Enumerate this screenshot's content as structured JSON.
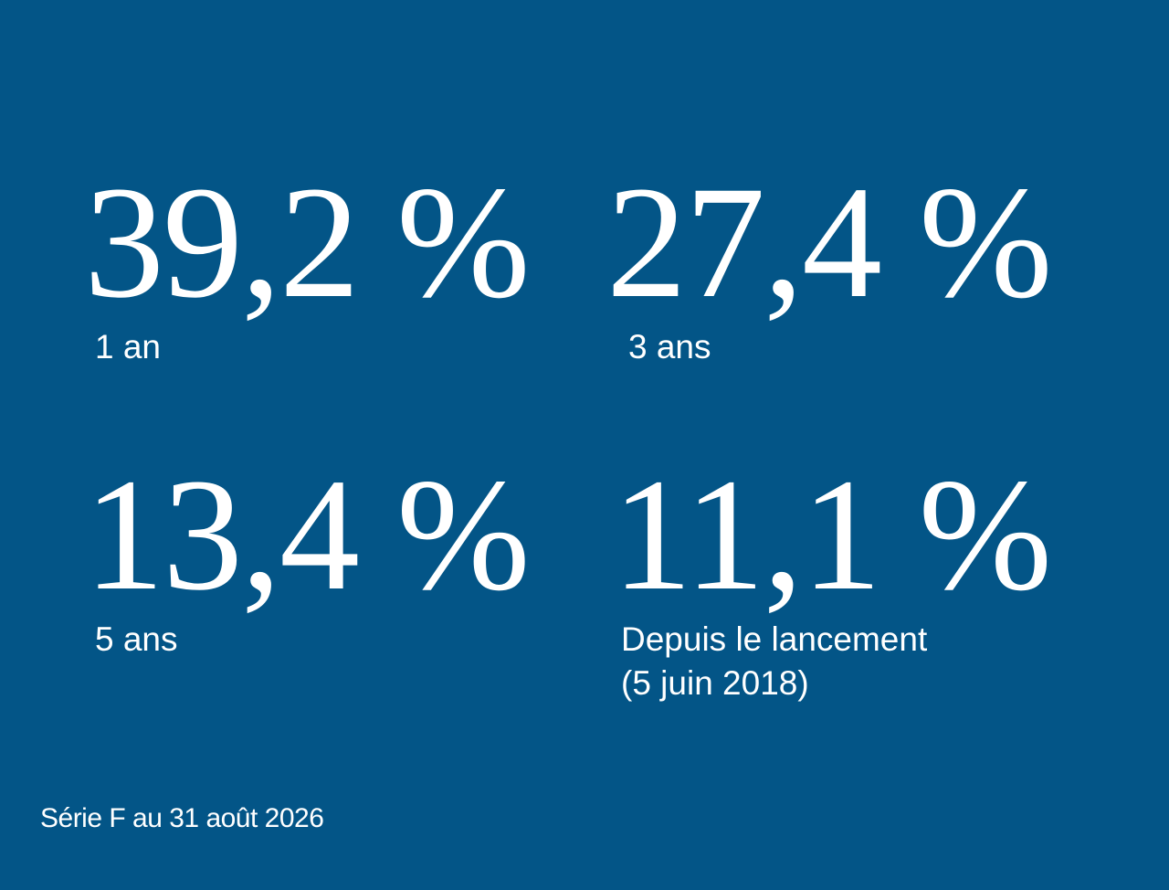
{
  "colors": {
    "background": "#035587",
    "text": "#ffffff"
  },
  "stats": [
    {
      "value": "39,2 %",
      "label": "1 an"
    },
    {
      "value": "27,4 %",
      "label": "3 ans"
    },
    {
      "value": "13,4 %",
      "label": "5 ans"
    },
    {
      "value": "11,1 %",
      "label": "Depuis le lancement",
      "label_line2": "(5 juin 2018)"
    }
  ],
  "footnote": "Série F au 31 août 2026"
}
